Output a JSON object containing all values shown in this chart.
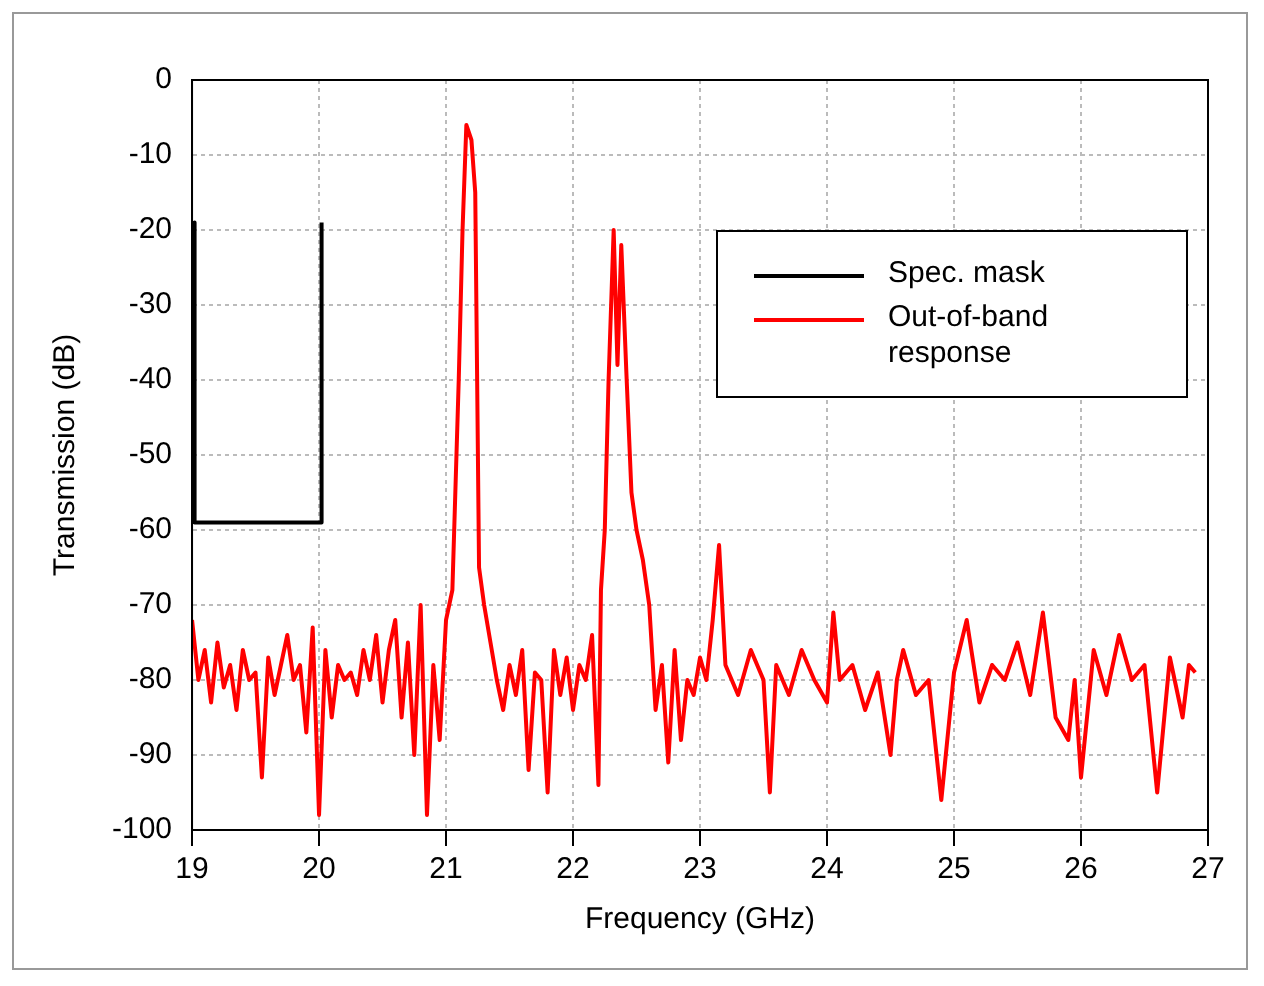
{
  "chart_data": {
    "type": "line",
    "xlabel": "Frequency (GHz)",
    "ylabel": "Transmission (dB)",
    "xlim": [
      19,
      27
    ],
    "xticks": [
      19,
      20,
      21,
      22,
      23,
      24,
      25,
      26,
      27
    ],
    "ylim": [
      -100,
      0
    ],
    "yticks": [
      -100,
      -90,
      -80,
      -70,
      -60,
      -50,
      -40,
      -30,
      -20,
      -10,
      0
    ],
    "grid": true,
    "legend": "top right",
    "marker": "none",
    "series": [
      {
        "name": "Spec. mask",
        "color": "#000000",
        "x": [
          19.02,
          19.02,
          20.02,
          20.02
        ],
        "values": [
          -19,
          -59,
          -59,
          -19
        ]
      },
      {
        "name": "Out-of-band response",
        "color": "#ff0000",
        "x": [
          19.0,
          19.05,
          19.1,
          19.15,
          19.2,
          19.25,
          19.3,
          19.35,
          19.4,
          19.45,
          19.5,
          19.55,
          19.6,
          19.65,
          19.7,
          19.75,
          19.8,
          19.85,
          19.9,
          19.95,
          20.0,
          20.05,
          20.1,
          20.15,
          20.2,
          20.25,
          20.3,
          20.35,
          20.4,
          20.45,
          20.5,
          20.55,
          20.6,
          20.65,
          20.7,
          20.75,
          20.8,
          20.85,
          20.9,
          20.95,
          21.0,
          21.05,
          21.1,
          21.13,
          21.16,
          21.2,
          21.23,
          21.26,
          21.3,
          21.35,
          21.4,
          21.45,
          21.5,
          21.55,
          21.6,
          21.65,
          21.7,
          21.75,
          21.8,
          21.85,
          21.9,
          21.95,
          22.0,
          22.05,
          22.1,
          22.15,
          22.2,
          22.22,
          22.25,
          22.28,
          22.32,
          22.35,
          22.38,
          22.42,
          22.46,
          22.5,
          22.55,
          22.6,
          22.65,
          22.7,
          22.75,
          22.8,
          22.85,
          22.9,
          22.95,
          23.0,
          23.05,
          23.1,
          23.15,
          23.2,
          23.3,
          23.4,
          23.5,
          23.55,
          23.6,
          23.7,
          23.8,
          23.9,
          24.0,
          24.05,
          24.1,
          24.2,
          24.3,
          24.4,
          24.5,
          24.55,
          24.6,
          24.7,
          24.8,
          24.9,
          25.0,
          25.1,
          25.2,
          25.3,
          25.4,
          25.5,
          25.6,
          25.7,
          25.8,
          25.9,
          25.95,
          26.0,
          26.1,
          26.2,
          26.3,
          26.4,
          26.5,
          26.6,
          26.7,
          26.8,
          26.85,
          26.9
        ],
        "values": [
          -72,
          -80,
          -76,
          -83,
          -75,
          -81,
          -78,
          -84,
          -76,
          -80,
          -79,
          -93,
          -77,
          -82,
          -78,
          -74,
          -80,
          -78,
          -87,
          -73,
          -98,
          -76,
          -85,
          -78,
          -80,
          -79,
          -82,
          -76,
          -80,
          -74,
          -83,
          -76,
          -72,
          -85,
          -75,
          -90,
          -70,
          -98,
          -78,
          -88,
          -72,
          -68,
          -40,
          -20,
          -6,
          -8,
          -15,
          -65,
          -70,
          -75,
          -80,
          -84,
          -78,
          -82,
          -76,
          -92,
          -79,
          -80,
          -95,
          -76,
          -82,
          -77,
          -84,
          -78,
          -80,
          -74,
          -94,
          -68,
          -60,
          -40,
          -20,
          -38,
          -22,
          -39,
          -55,
          -60,
          -64,
          -70,
          -84,
          -78,
          -91,
          -76,
          -88,
          -80,
          -82,
          -77,
          -80,
          -72,
          -62,
          -78,
          -82,
          -76,
          -80,
          -95,
          -78,
          -82,
          -76,
          -80,
          -83,
          -71,
          -80,
          -78,
          -84,
          -79,
          -90,
          -80,
          -76,
          -82,
          -80,
          -96,
          -79,
          -72,
          -83,
          -78,
          -80,
          -75,
          -82,
          -71,
          -85,
          -88,
          -80,
          -93,
          -76,
          -82,
          -74,
          -80,
          -78,
          -95,
          -77,
          -85,
          -78,
          -79
        ]
      }
    ]
  }
}
